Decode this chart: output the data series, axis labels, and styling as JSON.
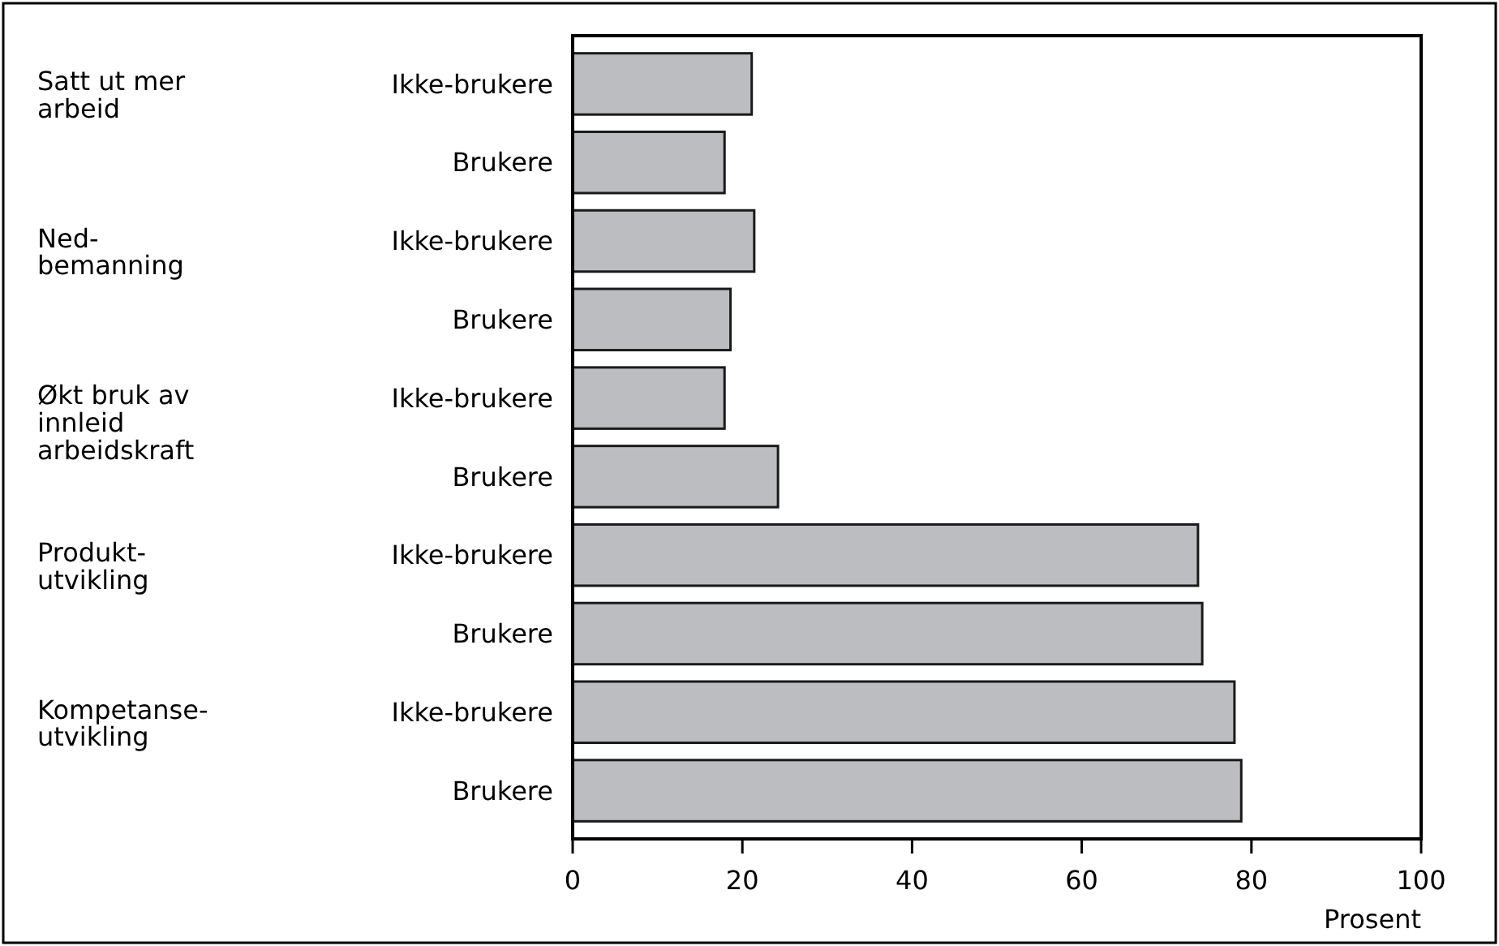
{
  "chart_data": {
    "type": "bar",
    "orientation": "horizontal",
    "categories": [
      "Ikke-brukere",
      "Brukere",
      "Ikke-brukere",
      "Brukere",
      "Ikke-brukere",
      "Brukere",
      "Ikke-brukere",
      "Brukere",
      "Ikke-brukere",
      "Brukere"
    ],
    "values": [
      21.1,
      17.9,
      21.4,
      18.6,
      17.9,
      24.2,
      73.7,
      74.2,
      78.0,
      78.8
    ],
    "color": "#bcbdc0",
    "xlim": [
      0,
      100
    ],
    "xticks": [
      0,
      20,
      40,
      60,
      80,
      100
    ],
    "xlabel": "Prosent",
    "annotations": [
      "Satt ut mer\narbeid",
      "Ned-\nbemanning",
      "Økt bruk av\ninnleid\narbeidskraft",
      "Produkt-\nutvikling",
      "Kompetanse-\nutvikling"
    ],
    "grid": false
  }
}
